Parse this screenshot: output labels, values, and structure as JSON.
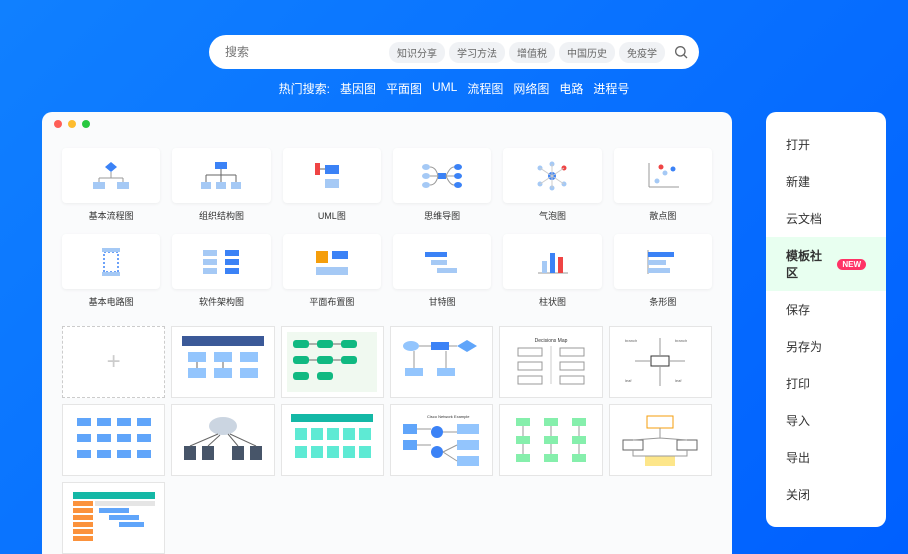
{
  "search": {
    "placeholder": "搜索",
    "tags": [
      "知识分享",
      "学习方法",
      "增值税",
      "中国历史",
      "免疫学"
    ]
  },
  "hot_search": {
    "label": "热门搜索:",
    "items": [
      "基因图",
      "平面图",
      "UML",
      "流程图",
      "网络图",
      "电路",
      "进程号"
    ]
  },
  "window_controls": {
    "colors": [
      "#ff5f57",
      "#febc2e",
      "#28c840"
    ]
  },
  "templates": [
    {
      "label": "基本流程图",
      "kind": "flowchart"
    },
    {
      "label": "组织结构图",
      "kind": "orgchart"
    },
    {
      "label": "UML图",
      "kind": "uml"
    },
    {
      "label": "思维导图",
      "kind": "mindmap"
    },
    {
      "label": "气泡图",
      "kind": "bubble"
    },
    {
      "label": "散点图",
      "kind": "scatter"
    },
    {
      "label": "基本电路图",
      "kind": "circuit"
    },
    {
      "label": "软件架构图",
      "kind": "arch"
    },
    {
      "label": "平面布置图",
      "kind": "floorplan"
    },
    {
      "label": "甘特图",
      "kind": "gantt"
    },
    {
      "label": "柱状图",
      "kind": "bar"
    },
    {
      "label": "条形图",
      "kind": "hbar"
    }
  ],
  "gallery_count": 12,
  "side_menu": {
    "items": [
      {
        "label": "打开",
        "active": false,
        "badge": null
      },
      {
        "label": "新建",
        "active": false,
        "badge": null
      },
      {
        "label": "云文档",
        "active": false,
        "badge": null
      },
      {
        "label": "模板社区",
        "active": true,
        "badge": "NEW"
      },
      {
        "label": "保存",
        "active": false,
        "badge": null
      },
      {
        "label": "另存为",
        "active": false,
        "badge": null
      },
      {
        "label": "打印",
        "active": false,
        "badge": null
      },
      {
        "label": "导入",
        "active": false,
        "badge": null
      },
      {
        "label": "导出",
        "active": false,
        "badge": null
      },
      {
        "label": "关闭",
        "active": false,
        "badge": null
      }
    ]
  },
  "colors": {
    "primary_blue": "#3b82f6",
    "light_blue": "#a5c9f5",
    "orange": "#f59e0b",
    "red": "#ef4444",
    "green": "#10b981",
    "teal": "#14b8a6"
  }
}
